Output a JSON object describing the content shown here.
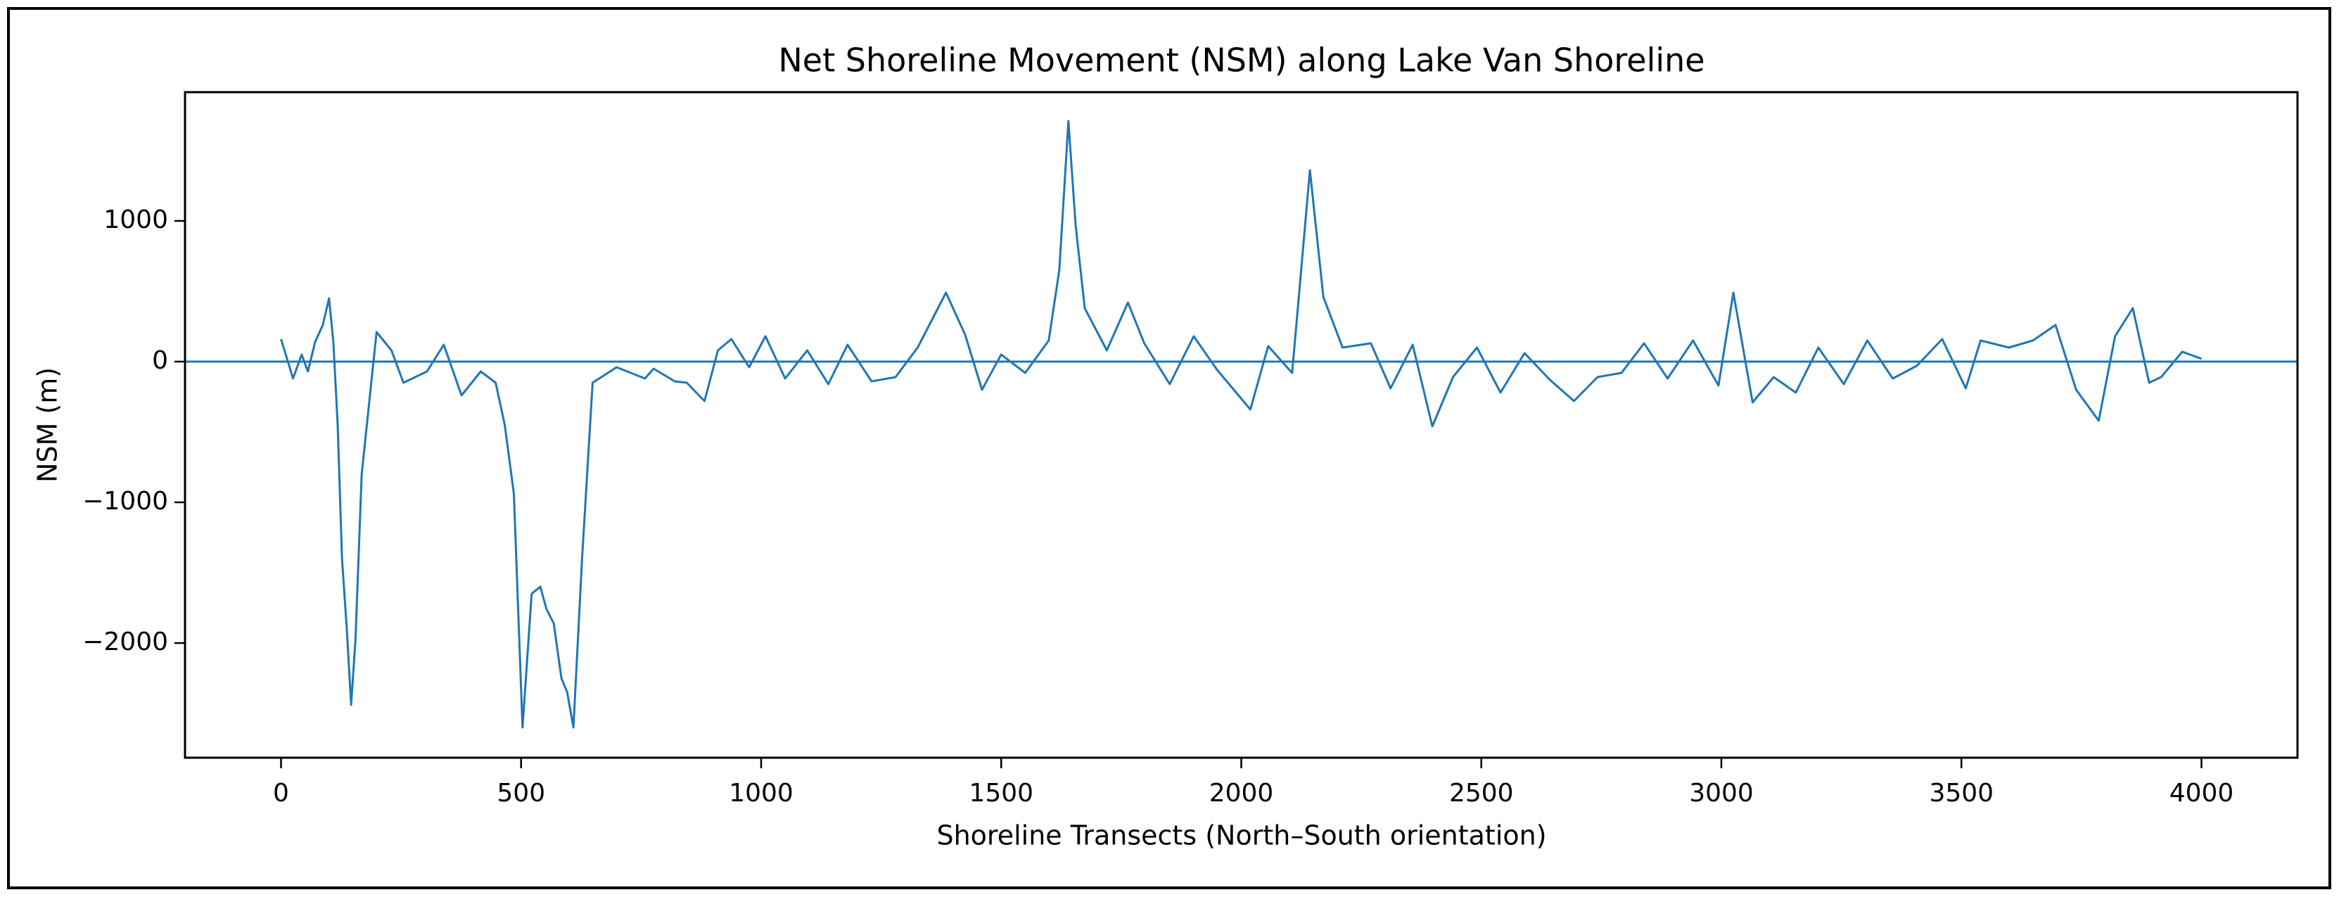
{
  "chart_data": {
    "type": "line",
    "title": "Net Shoreline Movement (NSM) along Lake Van Shoreline",
    "xlabel": "Shoreline Transects (North–South orientation)",
    "ylabel": "NSM (m)",
    "x": [
      0,
      25,
      43,
      56,
      71,
      87,
      100,
      109,
      118,
      127,
      137,
      146,
      155,
      168,
      199,
      230,
      255,
      304,
      339,
      376,
      416,
      447,
      466,
      485,
      503,
      522,
      540,
      553,
      568,
      584,
      596,
      609,
      627,
      649,
      699,
      758,
      776,
      820,
      845,
      882,
      910,
      938,
      975,
      1009,
      1050,
      1096,
      1140,
      1180,
      1230,
      1280,
      1326,
      1385,
      1425,
      1460,
      1500,
      1550,
      1599,
      1621,
      1640,
      1655,
      1674,
      1720,
      1764,
      1798,
      1851,
      1901,
      1950,
      2019,
      2056,
      2106,
      2143,
      2171,
      2211,
      2270,
      2311,
      2357,
      2398,
      2441,
      2491,
      2540,
      2590,
      2643,
      2693,
      2742,
      2792,
      2839,
      2888,
      2941,
      2994,
      3025,
      3065,
      3109,
      3155,
      3202,
      3255,
      3304,
      3357,
      3407,
      3460,
      3509,
      3540,
      3599,
      3649,
      3696,
      3739,
      3786,
      3820,
      3857,
      3891,
      3916,
      3960,
      4000
    ],
    "series": [
      {
        "color": "#1f77b4",
        "values": [
          160,
          -120,
          50,
          -70,
          140,
          260,
          450,
          140,
          -450,
          -1400,
          -1900,
          -2440,
          -1980,
          -800,
          210,
          80,
          -150,
          -70,
          120,
          -240,
          -70,
          -150,
          -450,
          -940,
          -2600,
          -1650,
          -1600,
          -1760,
          -1860,
          -2250,
          -2350,
          -2600,
          -1400,
          -150,
          -40,
          -120,
          -50,
          -140,
          -150,
          -280,
          80,
          160,
          -40,
          180,
          -120,
          80,
          -160,
          120,
          -140,
          -110,
          100,
          490,
          190,
          -200,
          50,
          -80,
          150,
          650,
          1710,
          970,
          380,
          80,
          420,
          130,
          -160,
          180,
          -60,
          -340,
          110,
          -80,
          1360,
          460,
          100,
          130,
          -190,
          120,
          -460,
          -110,
          100,
          -220,
          60,
          -130,
          -280,
          -110,
          -80,
          130,
          -120,
          150,
          -170,
          490,
          -290,
          -110,
          -220,
          100,
          -160,
          150,
          -120,
          -30,
          160,
          -190,
          150,
          100,
          150,
          260,
          -200,
          -420,
          180,
          380,
          -150,
          -110,
          70,
          20
        ]
      }
    ],
    "hlines": [
      {
        "value": 0,
        "color": "#1f77b4"
      }
    ],
    "xlim": [
      -200,
      4200
    ],
    "xticks": [
      0,
      500,
      1000,
      1500,
      2000,
      2500,
      3000,
      3500,
      4000
    ],
    "ylim": [
      -2815,
      1915
    ],
    "yticks": [
      {
        "value": -2000,
        "label": "−2000"
      },
      {
        "value": -1000,
        "label": "−1000"
      },
      0,
      1000
    ],
    "grid": false
  }
}
